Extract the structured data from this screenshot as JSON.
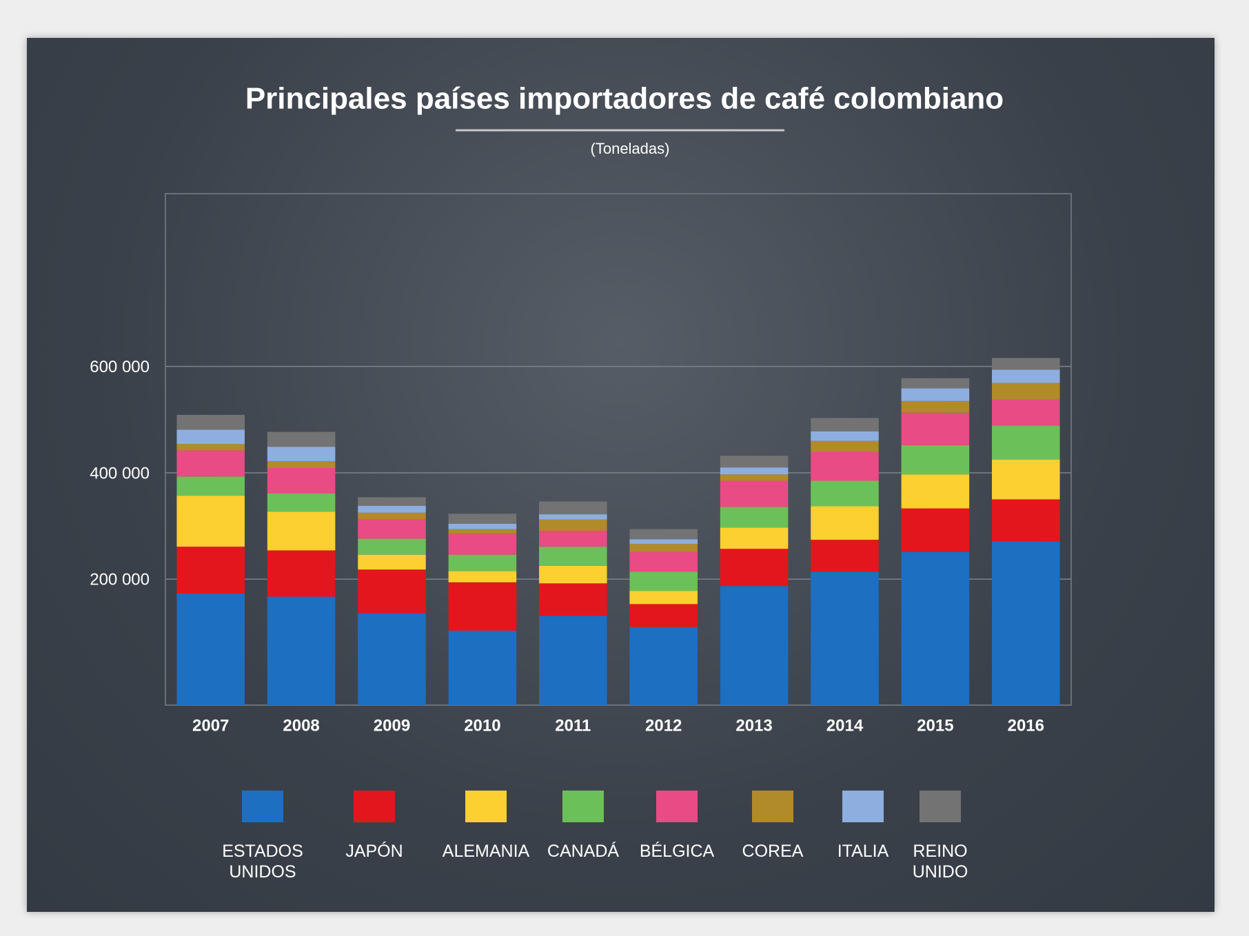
{
  "chart_data": {
    "type": "stacked_bar",
    "title": "Principales países importadores de café colombiano",
    "subtitle": "(Toneladas)",
    "categories": [
      "2007",
      "2008",
      "2009",
      "2010",
      "2011",
      "2012",
      "2013",
      "2014",
      "2015",
      "2016"
    ],
    "series": [
      {
        "name": "ESTADOS UNIDOS",
        "color": "#1c6fc1",
        "values": [
          210000,
          204000,
          173000,
          140000,
          168000,
          147000,
          224000,
          251000,
          288000,
          308000
        ]
      },
      {
        "name": "JAPÓN",
        "color": "#e3161d",
        "values": [
          88000,
          87000,
          82000,
          91000,
          61000,
          43000,
          70000,
          60000,
          82000,
          79000
        ]
      },
      {
        "name": "ALEMANIA",
        "color": "#fbd030",
        "values": [
          96000,
          73000,
          28000,
          21000,
          33000,
          25000,
          40000,
          63000,
          64000,
          75000
        ]
      },
      {
        "name": "CANADÁ",
        "color": "#6cc05a",
        "values": [
          36000,
          34000,
          30000,
          31000,
          36000,
          36000,
          39000,
          48000,
          55000,
          64000
        ]
      },
      {
        "name": "BÉLGICA",
        "color": "#e94b85",
        "values": [
          49000,
          48000,
          37000,
          39000,
          30000,
          37000,
          49000,
          54000,
          61000,
          49000
        ]
      },
      {
        "name": "COREA",
        "color": "#b18a2a",
        "values": [
          12000,
          13000,
          12000,
          9000,
          21000,
          15000,
          12000,
          21000,
          22000,
          31000
        ]
      },
      {
        "name": "ITALIA",
        "color": "#8eaee0",
        "values": [
          27000,
          27000,
          13000,
          10000,
          10000,
          9000,
          13000,
          18000,
          24000,
          25000
        ]
      },
      {
        "name": "REINO UNIDO",
        "color": "#737373",
        "values": [
          28000,
          28000,
          16000,
          19000,
          24000,
          19000,
          22000,
          25000,
          19000,
          22000
        ]
      }
    ],
    "ylim": [
      -37000,
      925000
    ],
    "yticks": [
      {
        "value": 200000,
        "label": "200 000"
      },
      {
        "value": 400000,
        "label": "400 000"
      },
      {
        "value": 600000,
        "label": "600 000"
      }
    ],
    "grid": true
  }
}
